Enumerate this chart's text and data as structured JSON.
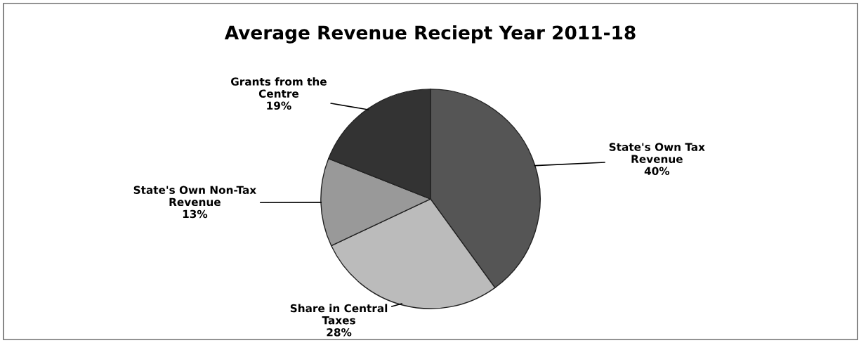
{
  "chart_data": {
    "type": "pie",
    "title": "Average Revenue Reciept Year 2011-18",
    "categories": [
      "State's Own Tax Revenue",
      "Share in Central Taxes",
      "State's Own Non-Tax Revenue",
      "Grants from the Centre"
    ],
    "values": [
      40,
      28,
      13,
      19
    ],
    "value_labels": [
      "40%",
      "28%",
      "13%",
      "19%"
    ],
    "colors": [
      "#555555",
      "#bbbbbb",
      "#999999",
      "#333333"
    ]
  }
}
